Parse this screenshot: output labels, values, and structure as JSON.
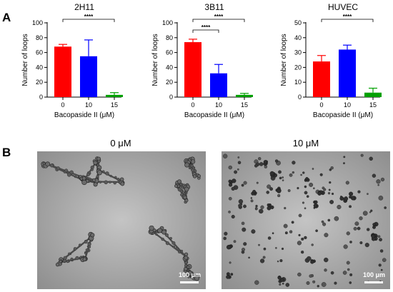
{
  "panel_a_label": "A",
  "panel_b_label": "B",
  "chart_data": [
    {
      "type": "bar",
      "title": "2H11",
      "categories": [
        "0",
        "10",
        "15"
      ],
      "values": [
        68,
        55,
        3
      ],
      "errors": [
        3,
        22,
        3
      ],
      "colors": [
        "#ff0000",
        "#0000ff",
        "#00a000"
      ],
      "xlabel": "Bacopaside II (μM)",
      "ylabel": "Number of loops",
      "ylim": [
        0,
        100
      ],
      "yticks": [
        0,
        20,
        40,
        60,
        80,
        100
      ],
      "significance": [
        {
          "from": "0",
          "to": "15",
          "label": "****"
        }
      ]
    },
    {
      "type": "bar",
      "title": "3B11",
      "categories": [
        "0",
        "10",
        "15"
      ],
      "values": [
        74,
        32,
        3
      ],
      "errors": [
        4,
        12,
        2
      ],
      "colors": [
        "#ff0000",
        "#0000ff",
        "#00a000"
      ],
      "xlabel": "Bacopaside II (μM)",
      "ylabel": "Number of loops",
      "ylim": [
        0,
        100
      ],
      "yticks": [
        0,
        20,
        40,
        60,
        80,
        100
      ],
      "significance": [
        {
          "from": "0",
          "to": "15",
          "label": "****"
        },
        {
          "from": "0",
          "to": "10",
          "label": "****"
        }
      ]
    },
    {
      "type": "bar",
      "title": "HUVEC",
      "categories": [
        "0",
        "10",
        "15"
      ],
      "values": [
        24,
        32,
        3
      ],
      "errors": [
        4,
        3,
        3
      ],
      "colors": [
        "#ff0000",
        "#0000ff",
        "#00a000"
      ],
      "xlabel": "Bacopaside II (μM)",
      "ylabel": "Number of loops",
      "ylim": [
        0,
        50
      ],
      "yticks": [
        0,
        10,
        20,
        30,
        40,
        50
      ],
      "significance": [
        {
          "from": "0",
          "to": "15",
          "label": "****"
        }
      ]
    }
  ],
  "micrographs": [
    {
      "label": "0 μM",
      "scale_bar": "100 μm",
      "pattern": "network"
    },
    {
      "label": "10 μM",
      "scale_bar": "100 μm",
      "pattern": "scattered"
    }
  ]
}
